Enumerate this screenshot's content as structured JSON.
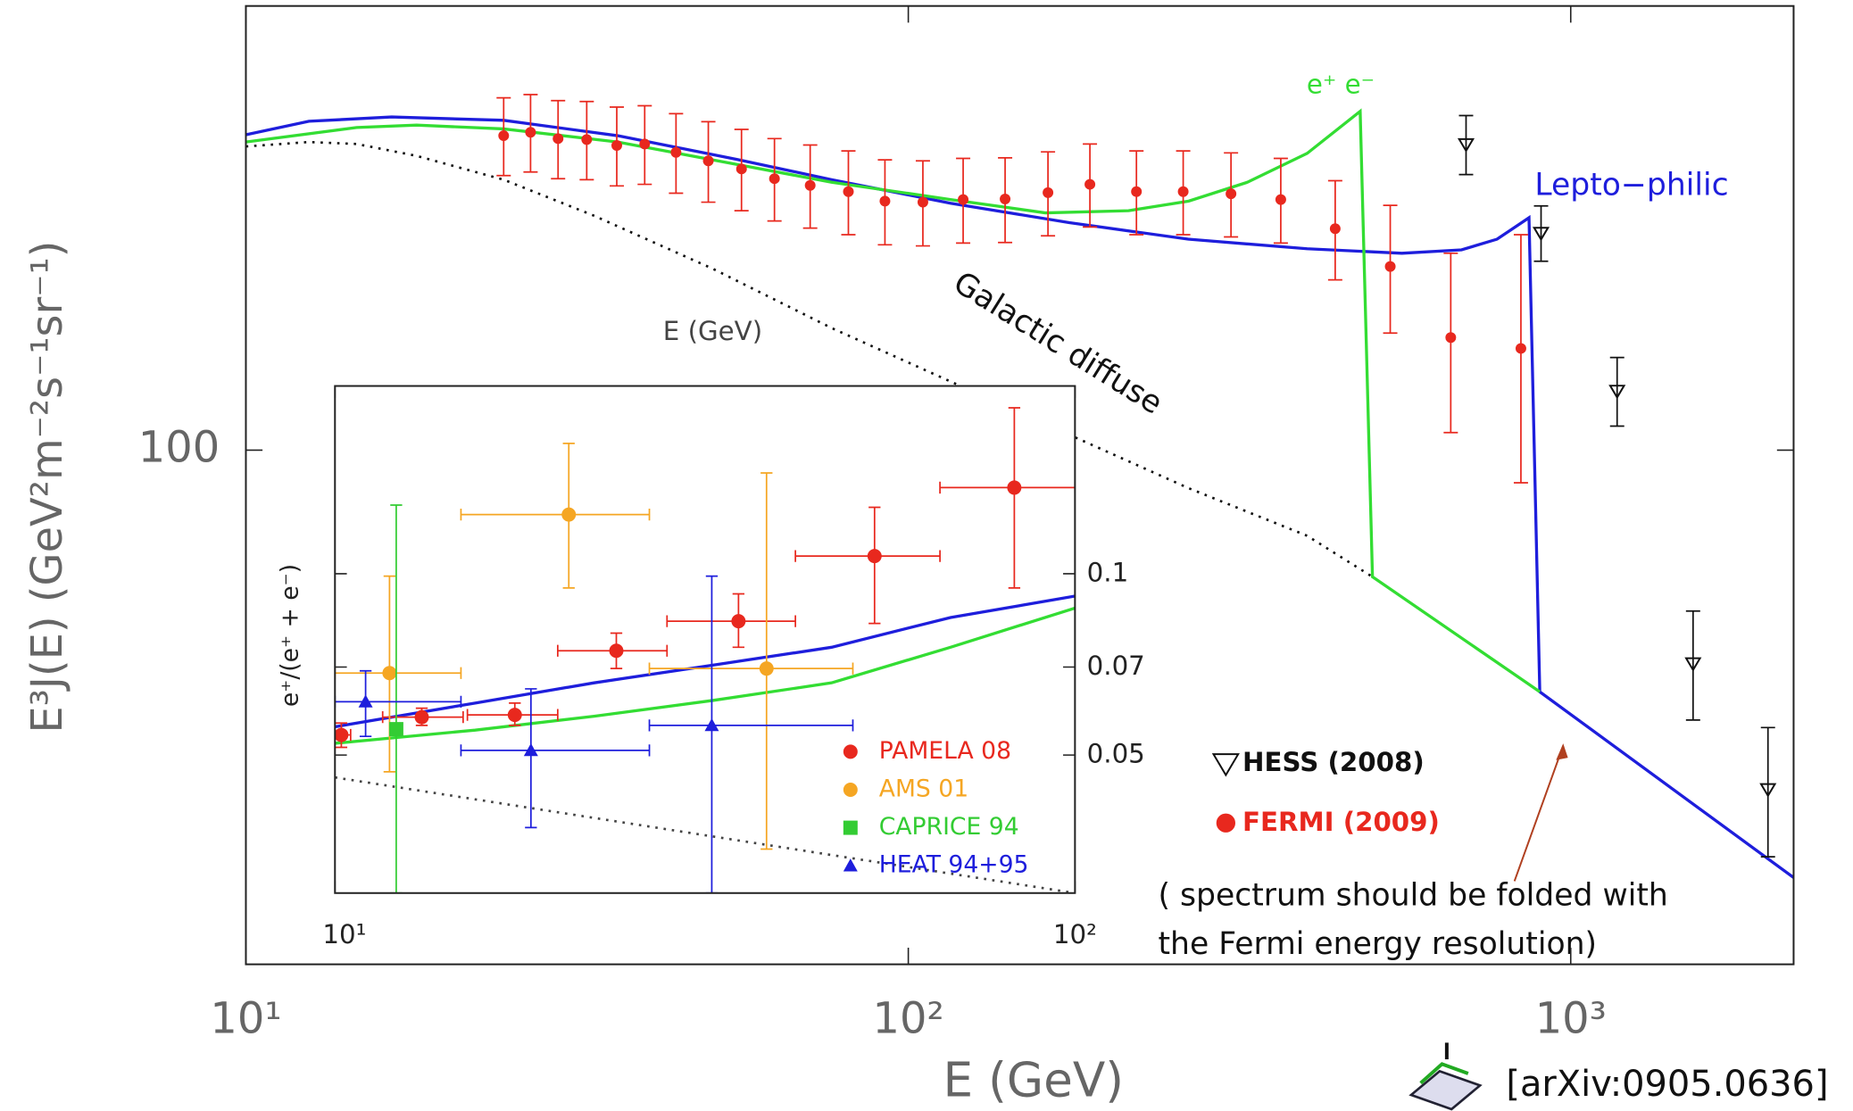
{
  "chart_data": [
    {
      "type": "line",
      "x_label": "E (GeV)",
      "y_label": "E³J(E) (GeV²m⁻²s⁻¹sr⁻¹)",
      "xscale": "log",
      "yscale": "log",
      "xlim": [
        10,
        2170
      ],
      "ylim": [
        50,
        182
      ],
      "xticks": [
        {
          "value": 10,
          "label": "10¹"
        },
        {
          "value": 100,
          "label": "10²"
        },
        {
          "value": 1000,
          "label": "10³"
        }
      ],
      "yticks": [
        100
      ],
      "series": [
        {
          "name": "Lepto−philic",
          "color": "#1e1edc",
          "style": "solid",
          "x": [
            10,
            12.45,
            16.6,
            24.5,
            36.4,
            55.1,
            76.6,
            115.8,
            175,
            264.6,
            400,
            556,
            684,
            774,
            865,
            898,
            2170
          ],
          "values": [
            153.0,
            155.8,
            156.7,
            156.0,
            152.8,
            148.0,
            144.0,
            139.5,
            135.9,
            132.9,
            131.2,
            130.4,
            131.0,
            132.9,
            136.8,
            72.2,
            56.2
          ]
        },
        {
          "name": "e⁺ e⁻",
          "color": "#33dd33",
          "style": "solid",
          "x": [
            10,
            14.7,
            18.1,
            24.5,
            36.4,
            55.1,
            76.6,
            115.8,
            161,
            215,
            265,
            325,
            400,
            481,
            502,
            898
          ],
          "values": [
            151.5,
            154.5,
            155.0,
            154.2,
            151.5,
            147.0,
            143.5,
            140.2,
            137.7,
            138.1,
            139.9,
            143.5,
            149.2,
            157.9,
            84.3,
            72.2
          ]
        },
        {
          "name": "Galactic diffuse",
          "color": "#111111",
          "style": "dotted",
          "x": [
            10,
            12.45,
            14.7,
            18.1,
            24.5,
            33.5,
            50.7,
            76.6,
            115.8,
            175,
            265,
            400,
            502
          ],
          "values": [
            150.6,
            151.5,
            151.1,
            148.7,
            144.0,
            137.2,
            127.7,
            117.9,
            109.7,
            102.1,
            95.0,
            89.1,
            84.3
          ]
        },
        {
          "name": "FERMI (2009)",
          "color": "#e8281e",
          "marker": "circle",
          "x": [
            24.5,
            26.9,
            29.6,
            32.7,
            36.3,
            40.0,
            44.6,
            49.9,
            56.0,
            62.8,
            71.1,
            81.2,
            92.2,
            105.2,
            121,
            140,
            162.5,
            188,
            221,
            260,
            307,
            365,
            441,
            534,
            659,
            841
          ],
          "values": [
            152.8,
            153.5,
            152.2,
            152.0,
            150.8,
            151.1,
            149.4,
            147.7,
            146.1,
            144.2,
            142.9,
            141.7,
            139.9,
            139.7,
            140.2,
            140.3,
            141.5,
            143.1,
            141.7,
            141.7,
            141.3,
            140.2,
            134.8,
            128.1,
            116.4,
            114.7
          ],
          "errors": [
            8,
            8,
            8,
            8,
            8,
            8,
            8,
            8,
            8,
            8,
            8,
            8,
            8,
            8,
            8,
            8,
            8,
            8,
            8,
            8,
            8,
            8,
            9,
            11,
            14,
            19
          ]
        },
        {
          "name": "HESS (2008)",
          "color": "#111111",
          "marker": "triangle-down",
          "x": [
            695,
            902,
            1175,
            1530,
            1985
          ],
          "values": [
            151,
            134,
            108.3,
            75.0,
            63.3
          ],
          "errors": [
            6,
            5,
            5,
            5.5,
            5.5
          ]
        }
      ],
      "annotations": [
        "( spectrum should be folded with",
        "the Fermi energy resolution)"
      ],
      "source": "[arXiv:0905.0636]"
    },
    {
      "type": "line",
      "x_label": "E (GeV)",
      "y_label": "e⁺/(e⁺ + e⁻)",
      "xscale": "log",
      "yscale": "log",
      "xlim": [
        10,
        100
      ],
      "ylim": [
        0.0295,
        0.205
      ],
      "xticks": [
        {
          "value": 10,
          "label": "10¹"
        },
        {
          "value": 100,
          "label": "10²"
        }
      ],
      "yticks": [
        0.05,
        0.07,
        0.1
      ],
      "series": [
        {
          "color": "#1e1edc",
          "style": "solid",
          "x": [
            10,
            15.47,
            22.4,
            32.4,
            46.9,
            67.9,
            100
          ],
          "values": [
            0.0557,
            0.061,
            0.0659,
            0.0705,
            0.0755,
            0.0846,
            0.0918
          ]
        },
        {
          "color": "#33dd33",
          "style": "solid",
          "x": [
            10,
            15.47,
            22.4,
            32.4,
            46.9,
            67.9,
            100
          ],
          "values": [
            0.0523,
            0.055,
            0.058,
            0.0616,
            0.0659,
            0.0755,
            0.0877
          ]
        },
        {
          "color": "#444444",
          "style": "dotted",
          "x": [
            10,
            100
          ],
          "values": [
            0.0459,
            0.0295
          ]
        },
        {
          "name": "PAMELA 08",
          "color": "#e8281e",
          "marker": "circle",
          "x": [
            10.2,
            13.1,
            17.5,
            24.0,
            35.1,
            53.6,
            82.8
          ],
          "values": [
            0.054,
            0.0578,
            0.0583,
            0.0745,
            0.0834,
            0.107,
            0.139
          ],
          "x_low": [
            10,
            11.6,
            15.1,
            20.0,
            28.1,
            41.9,
            65.7
          ],
          "x_high": [
            10.5,
            14.9,
            20.0,
            28.1,
            41.9,
            65.7,
            100
          ],
          "y_low": [
            0.0515,
            0.056,
            0.056,
            0.0696,
            0.0755,
            0.0827,
            0.0947
          ],
          "y_high": [
            0.0565,
            0.0598,
            0.061,
            0.0797,
            0.0926,
            0.1289,
            0.1886
          ]
        },
        {
          "name": "AMS 01",
          "color": "#f5a623",
          "marker": "circle",
          "x": [
            11.85,
            20.7,
            38.3
          ],
          "values": [
            0.0684,
            0.1254,
            0.0696
          ],
          "x_low": [
            10,
            14.8,
            26.6
          ],
          "x_high": [
            14.8,
            26.6,
            50.1
          ],
          "y_low": [
            0.0469,
            0.0947,
            0.0349
          ],
          "y_high": [
            0.0991,
            0.1646,
            0.147
          ]
        },
        {
          "name": "CAPRICE 94",
          "color": "#33cc33",
          "marker": "square",
          "x": [
            12.1
          ],
          "values": [
            0.0552
          ],
          "y_low": [
            0.0295
          ],
          "y_high": [
            0.13
          ]
        },
        {
          "name": "HEAT 94+95",
          "color": "#1e1edc",
          "marker": "triangle-up",
          "x": [
            11.0,
            18.4,
            32.3
          ],
          "values": [
            0.0613,
            0.0509,
            0.056
          ],
          "x_low": [
            10,
            14.8,
            26.6
          ],
          "x_high": [
            14.8,
            26.6,
            50.1
          ],
          "y_low": [
            0.0537,
            0.0379,
            0.0295
          ],
          "y_high": [
            0.069,
            0.0644,
            0.0991
          ]
        }
      ]
    }
  ]
}
